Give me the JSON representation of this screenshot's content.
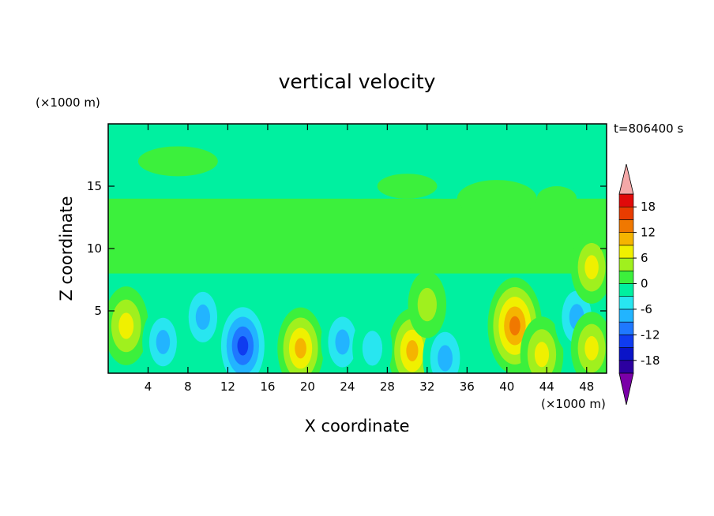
{
  "chart_data": {
    "type": "heatmap",
    "title": "vertical velocity",
    "xlabel": "X coordinate",
    "ylabel": "Z coordinate",
    "x_unit": "(×1000 m)",
    "y_unit": "(×1000 m)",
    "time_label": "t=806400 s",
    "xlim": [
      0,
      50
    ],
    "ylim": [
      0,
      20
    ],
    "x_ticks": [
      4,
      8,
      12,
      16,
      20,
      24,
      28,
      32,
      36,
      40,
      44,
      48
    ],
    "y_ticks": [
      5,
      10,
      15
    ],
    "colorbar": {
      "ticks": [
        18,
        12,
        6,
        0,
        -6,
        -12,
        -18
      ],
      "levels": [
        -21,
        -18,
        -15,
        -12,
        -9,
        -6,
        -3,
        0,
        3,
        6,
        9,
        12,
        15,
        18,
        21
      ],
      "colors": [
        "#7a00a8",
        "#2c00a0",
        "#0a14c8",
        "#0f3cf0",
        "#1f78ff",
        "#22b4ff",
        "#28e6f0",
        "#00f0a0",
        "#3cf03c",
        "#a0f01e",
        "#f0f000",
        "#f5b400",
        "#f07800",
        "#e83c00",
        "#e00a0a",
        "#f4a8a8"
      ],
      "extend_low_color": "#7a00a8",
      "extend_high_color": "#f4a8a8"
    },
    "features": [
      {
        "x": 1.8,
        "z": 3.8,
        "value": 8
      },
      {
        "x": 5.5,
        "z": 2.5,
        "value": -6
      },
      {
        "x": 9.5,
        "z": 4.5,
        "value": -7
      },
      {
        "x": 13.5,
        "z": 2.2,
        "value": -14
      },
      {
        "x": 19.3,
        "z": 2.0,
        "value": 9
      },
      {
        "x": 23.5,
        "z": 2.5,
        "value": -7
      },
      {
        "x": 30.5,
        "z": 1.8,
        "value": 10
      },
      {
        "x": 33.8,
        "z": 1.2,
        "value": -8
      },
      {
        "x": 32,
        "z": 5.5,
        "value": 4
      },
      {
        "x": 40.8,
        "z": 3.8,
        "value": 14
      },
      {
        "x": 43.5,
        "z": 1.5,
        "value": 7
      },
      {
        "x": 47,
        "z": 4.5,
        "value": -8
      },
      {
        "x": 48.5,
        "z": 2.0,
        "value": 6
      },
      {
        "x": 48.5,
        "z": 8.5,
        "value": 6
      },
      {
        "x": 26.5,
        "z": 2.0,
        "value": -5
      }
    ]
  }
}
